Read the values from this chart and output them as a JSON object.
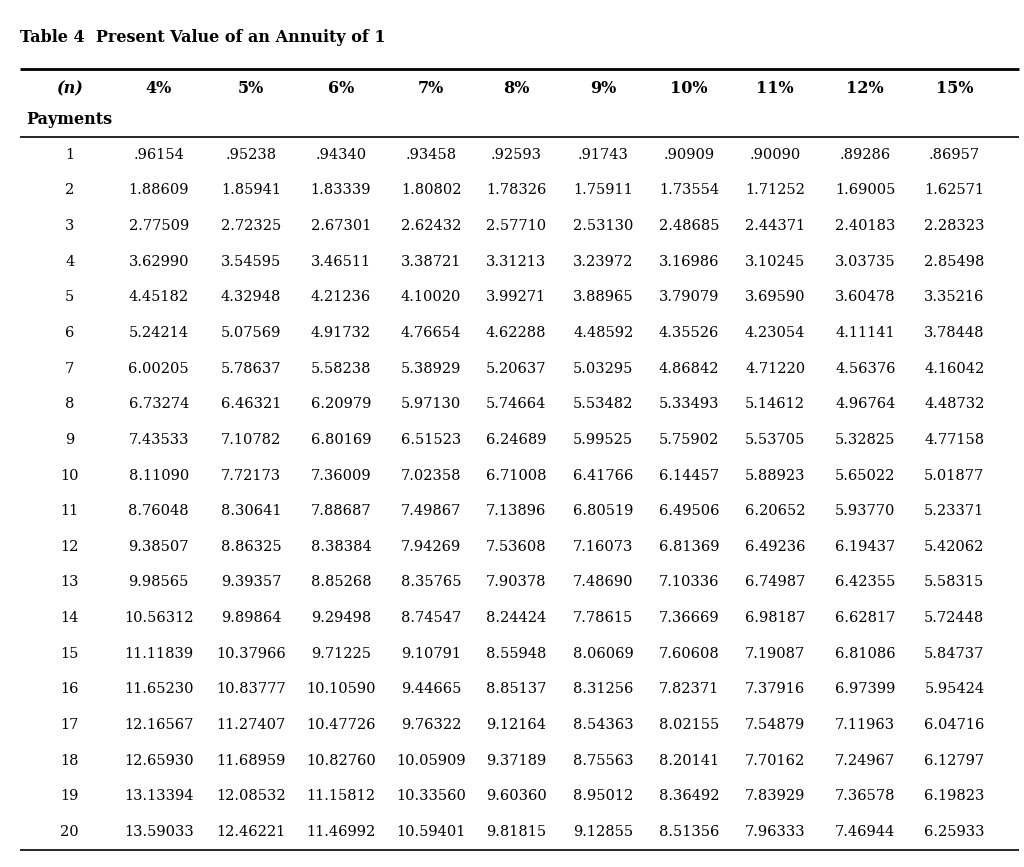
{
  "title": "Table 4  Present Value of an Annuity of 1",
  "rates": [
    "4%",
    "5%",
    "6%",
    "7%",
    "8%",
    "9%",
    "10%",
    "11%",
    "12%",
    "15%"
  ],
  "rows": [
    [
      1,
      ".96154",
      ".95238",
      ".94340",
      ".93458",
      ".92593",
      ".91743",
      ".90909",
      ".90090",
      ".89286",
      ".86957"
    ],
    [
      2,
      "1.88609",
      "1.85941",
      "1.83339",
      "1.80802",
      "1.78326",
      "1.75911",
      "1.73554",
      "1.71252",
      "1.69005",
      "1.62571"
    ],
    [
      3,
      "2.77509",
      "2.72325",
      "2.67301",
      "2.62432",
      "2.57710",
      "2.53130",
      "2.48685",
      "2.44371",
      "2.40183",
      "2.28323"
    ],
    [
      4,
      "3.62990",
      "3.54595",
      "3.46511",
      "3.38721",
      "3.31213",
      "3.23972",
      "3.16986",
      "3.10245",
      "3.03735",
      "2.85498"
    ],
    [
      5,
      "4.45182",
      "4.32948",
      "4.21236",
      "4.10020",
      "3.99271",
      "3.88965",
      "3.79079",
      "3.69590",
      "3.60478",
      "3.35216"
    ],
    [
      6,
      "5.24214",
      "5.07569",
      "4.91732",
      "4.76654",
      "4.62288",
      "4.48592",
      "4.35526",
      "4.23054",
      "4.11141",
      "3.78448"
    ],
    [
      7,
      "6.00205",
      "5.78637",
      "5.58238",
      "5.38929",
      "5.20637",
      "5.03295",
      "4.86842",
      "4.71220",
      "4.56376",
      "4.16042"
    ],
    [
      8,
      "6.73274",
      "6.46321",
      "6.20979",
      "5.97130",
      "5.74664",
      "5.53482",
      "5.33493",
      "5.14612",
      "4.96764",
      "4.48732"
    ],
    [
      9,
      "7.43533",
      "7.10782",
      "6.80169",
      "6.51523",
      "6.24689",
      "5.99525",
      "5.75902",
      "5.53705",
      "5.32825",
      "4.77158"
    ],
    [
      10,
      "8.11090",
      "7.72173",
      "7.36009",
      "7.02358",
      "6.71008",
      "6.41766",
      "6.14457",
      "5.88923",
      "5.65022",
      "5.01877"
    ],
    [
      11,
      "8.76048",
      "8.30641",
      "7.88687",
      "7.49867",
      "7.13896",
      "6.80519",
      "6.49506",
      "6.20652",
      "5.93770",
      "5.23371"
    ],
    [
      12,
      "9.38507",
      "8.86325",
      "8.38384",
      "7.94269",
      "7.53608",
      "7.16073",
      "6.81369",
      "6.49236",
      "6.19437",
      "5.42062"
    ],
    [
      13,
      "9.98565",
      "9.39357",
      "8.85268",
      "8.35765",
      "7.90378",
      "7.48690",
      "7.10336",
      "6.74987",
      "6.42355",
      "5.58315"
    ],
    [
      14,
      "10.56312",
      "9.89864",
      "9.29498",
      "8.74547",
      "8.24424",
      "7.78615",
      "7.36669",
      "6.98187",
      "6.62817",
      "5.72448"
    ],
    [
      15,
      "11.11839",
      "10.37966",
      "9.71225",
      "9.10791",
      "8.55948",
      "8.06069",
      "7.60608",
      "7.19087",
      "6.81086",
      "5.84737"
    ],
    [
      16,
      "11.65230",
      "10.83777",
      "10.10590",
      "9.44665",
      "8.85137",
      "8.31256",
      "7.82371",
      "7.37916",
      "6.97399",
      "5.95424"
    ],
    [
      17,
      "12.16567",
      "11.27407",
      "10.47726",
      "9.76322",
      "9.12164",
      "8.54363",
      "8.02155",
      "7.54879",
      "7.11963",
      "6.04716"
    ],
    [
      18,
      "12.65930",
      "11.68959",
      "10.82760",
      "10.05909",
      "9.37189",
      "8.75563",
      "8.20141",
      "7.70162",
      "7.24967",
      "6.12797"
    ],
    [
      19,
      "13.13394",
      "12.08532",
      "11.15812",
      "10.33560",
      "9.60360",
      "8.95012",
      "8.36492",
      "7.83929",
      "7.36578",
      "6.19823"
    ],
    [
      20,
      "13.59033",
      "12.46221",
      "11.46992",
      "10.59401",
      "9.81815",
      "9.12855",
      "8.51356",
      "7.96333",
      "7.46944",
      "6.25933"
    ]
  ],
  "bg_color": "#ffffff",
  "text_color": "#000000",
  "title_fontsize": 11.5,
  "header_fontsize": 11.5,
  "data_fontsize": 10.5
}
